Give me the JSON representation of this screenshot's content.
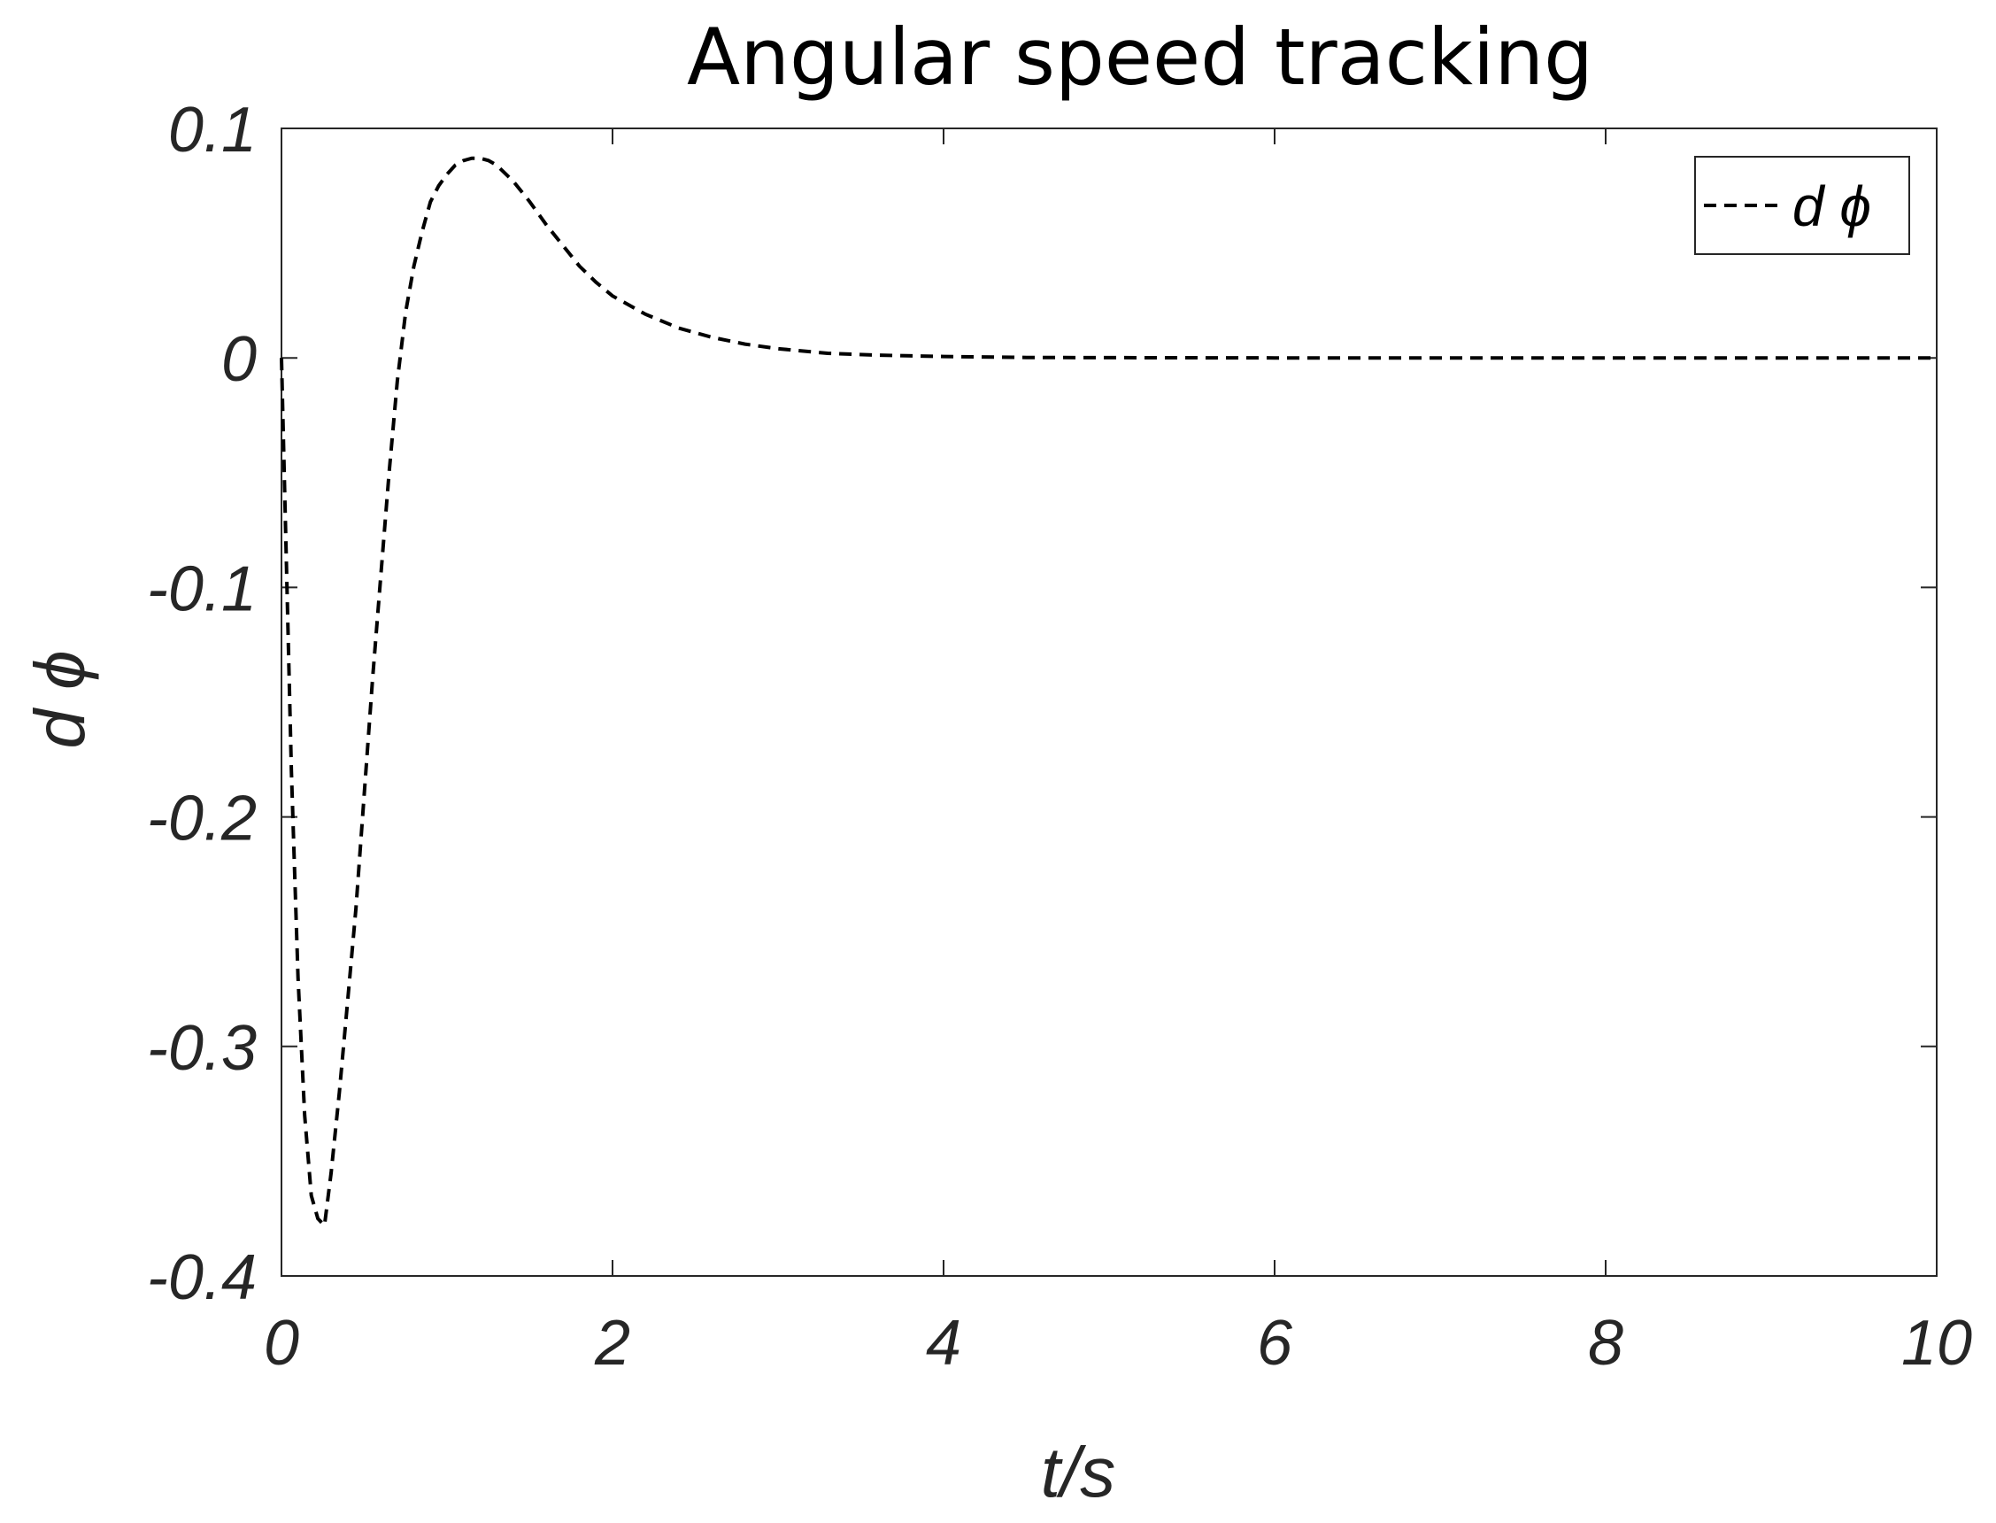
{
  "chart_data": {
    "type": "line",
    "title": "Angular speed tracking",
    "xlabel": "t/s",
    "ylabel": "d ϕ",
    "xlim": [
      0,
      10
    ],
    "ylim": [
      -0.4,
      0.1
    ],
    "xticks": [
      0,
      2,
      4,
      6,
      8,
      10
    ],
    "xtick_labels": [
      "0",
      "2",
      "4",
      "6",
      "8",
      "10"
    ],
    "yticks": [
      0.1,
      0,
      -0.1,
      -0.2,
      -0.3,
      -0.4
    ],
    "ytick_labels": [
      "0.1",
      "0",
      "-0.1",
      "-0.2",
      "-0.3",
      "-0.4"
    ],
    "grid": false,
    "legend_position": "top-right",
    "series": [
      {
        "name": "d ϕ",
        "style": "dashed",
        "color": "#000000",
        "x": [
          0,
          0.03,
          0.06,
          0.1,
          0.14,
          0.18,
          0.22,
          0.26,
          0.3,
          0.35,
          0.4,
          0.45,
          0.5,
          0.55,
          0.6,
          0.65,
          0.7,
          0.75,
          0.8,
          0.85,
          0.9,
          0.95,
          1.0,
          1.05,
          1.1,
          1.15,
          1.2,
          1.25,
          1.3,
          1.4,
          1.5,
          1.6,
          1.7,
          1.8,
          1.9,
          2.0,
          2.2,
          2.4,
          2.6,
          2.8,
          3.0,
          3.3,
          3.6,
          4.0,
          4.5,
          5.0,
          6.0,
          7.0,
          8.0,
          9.0,
          10.0
        ],
        "y": [
          0,
          -0.09,
          -0.18,
          -0.27,
          -0.33,
          -0.365,
          -0.375,
          -0.378,
          -0.355,
          -0.32,
          -0.28,
          -0.24,
          -0.19,
          -0.14,
          -0.095,
          -0.05,
          -0.01,
          0.02,
          0.04,
          0.055,
          0.068,
          0.075,
          0.08,
          0.084,
          0.086,
          0.087,
          0.087,
          0.086,
          0.084,
          0.077,
          0.068,
          0.058,
          0.049,
          0.04,
          0.033,
          0.027,
          0.019,
          0.013,
          0.009,
          0.006,
          0.004,
          0.002,
          0.0012,
          0.0006,
          0.0002,
          0.0001,
          0,
          0,
          0,
          0,
          0
        ]
      }
    ]
  }
}
